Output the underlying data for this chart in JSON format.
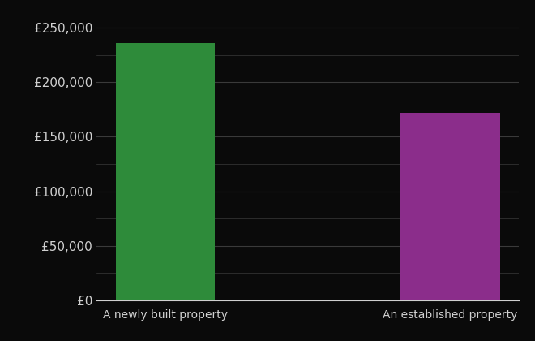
{
  "categories": [
    "A newly built property",
    "An established property"
  ],
  "values": [
    236000,
    172000
  ],
  "bar_colors": [
    "#2e8b3a",
    "#8b2d8b"
  ],
  "background_color": "#0a0a0a",
  "text_color": "#d0d0d0",
  "grid_color": "#3a3a3a",
  "ylim": [
    0,
    260000
  ],
  "ytick_major": [
    0,
    50000,
    100000,
    150000,
    200000,
    250000
  ],
  "ytick_minor": [
    25000,
    75000,
    125000,
    175000,
    225000
  ],
  "bar_width": 0.35,
  "figsize": [
    6.6,
    4.2
  ],
  "dpi": 100
}
